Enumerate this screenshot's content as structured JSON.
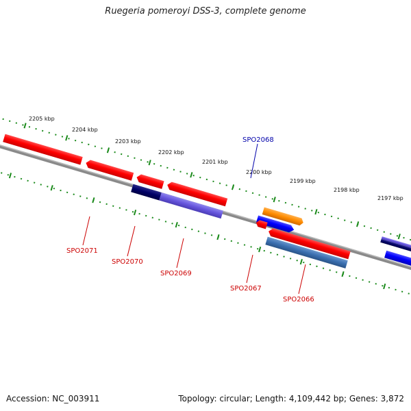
{
  "title": "Ruegeria pomeroyi DSS-3, complete genome",
  "footer": {
    "accession": "Accession: NC_003911",
    "topology": "Topology: circular; Length: 4,109,442 bp; Genes: 3,872"
  },
  "colors": {
    "forward_gene": "#1a1aff",
    "reverse_gene": "#ff1a1a",
    "highlight_gene": "#ff8c00",
    "dark_gene": "#000066",
    "violet_gene": "#6655dd",
    "steel_gene": "#3a6fb0",
    "backbone": "#808080",
    "ticks": "#1a8a1a"
  },
  "ruler": {
    "ticks": [
      {
        "label": "2205 kbp"
      },
      {
        "label": "2204 kbp"
      },
      {
        "label": "2203 kbp"
      },
      {
        "label": "2202 kbp"
      },
      {
        "label": "2201 kbp"
      },
      {
        "label": "2200 kbp"
      },
      {
        "label": "2199 kbp"
      },
      {
        "label": "2198 kbp"
      },
      {
        "label": "2197 kbp"
      }
    ]
  },
  "genes": [
    {
      "label": "SPO2071"
    },
    {
      "label": "SPO2070"
    },
    {
      "label": "SPO2069"
    },
    {
      "label": "SPO2068"
    },
    {
      "label": "SPO2067"
    },
    {
      "label": "SPO2066"
    }
  ]
}
